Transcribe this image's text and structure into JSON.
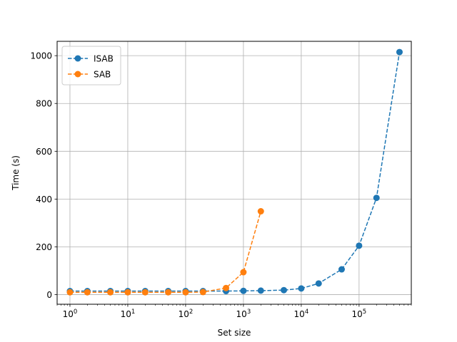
{
  "chart_data": {
    "type": "line",
    "title": "",
    "xlabel": "Set size",
    "ylabel": "Time (s)",
    "xscale": "log",
    "xlim": [
      0.6,
      800000
    ],
    "ylim": [
      -40,
      1060
    ],
    "grid": true,
    "legend_position": "top-left",
    "line_style": "dashed",
    "marker": "circle",
    "x_tick_labels": [
      {
        "value": 1,
        "base": "10",
        "exp": "0"
      },
      {
        "value": 10,
        "base": "10",
        "exp": "1"
      },
      {
        "value": 100,
        "base": "10",
        "exp": "2"
      },
      {
        "value": 1000,
        "base": "10",
        "exp": "3"
      },
      {
        "value": 10000,
        "base": "10",
        "exp": "4"
      },
      {
        "value": 100000,
        "base": "10",
        "exp": "5"
      }
    ],
    "y_ticks": [
      0,
      200,
      400,
      600,
      800,
      1000
    ],
    "y_tick_labels": [
      "0",
      "200",
      "400",
      "600",
      "800",
      "1000"
    ],
    "series": [
      {
        "name": "ISAB",
        "color": "#1f77b4",
        "x": [
          1,
          2,
          5,
          10,
          20,
          50,
          100,
          200,
          500,
          1000,
          2000,
          5000,
          10000,
          20000,
          50000,
          100000,
          200000,
          500000
        ],
        "y": [
          15,
          15,
          15,
          15,
          15,
          15,
          15,
          15,
          15,
          16,
          17,
          19,
          26,
          47,
          106,
          205,
          405,
          1015
        ]
      },
      {
        "name": "SAB",
        "color": "#ff7f0e",
        "x": [
          1,
          2,
          5,
          10,
          20,
          50,
          100,
          200,
          500,
          1000,
          2000
        ],
        "y": [
          10,
          10,
          10,
          10,
          10,
          10,
          10,
          11,
          28,
          94,
          349
        ]
      }
    ]
  }
}
